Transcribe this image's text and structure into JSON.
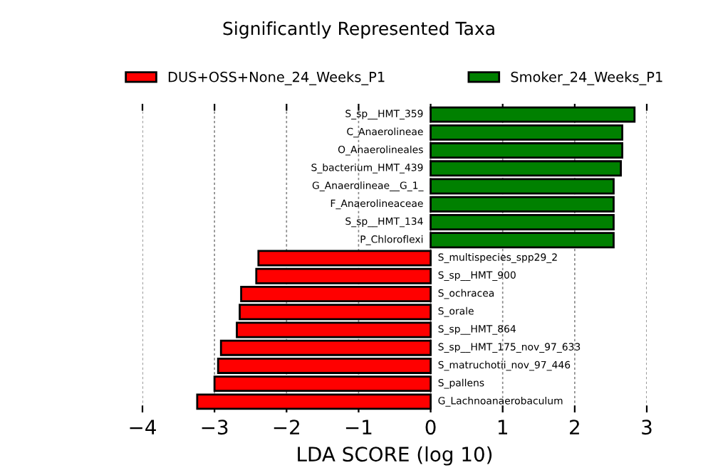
{
  "chart_data": {
    "type": "bar",
    "orientation": "horizontal",
    "title": "Significantly Represented Taxa",
    "xlabel": "LDA SCORE (log 10)",
    "categories": [
      "S_sp__HMT_359",
      "C_Anaerolineae",
      "O_Anaerolineales",
      "S_bacterium_HMT_439",
      "G_Anaerolineae__G_1_",
      "F_Anaerolineaceae",
      "S_sp__HMT_134",
      "P_Chloroflexi",
      "S_multispecies_spp29_2",
      "S_sp__HMT_900",
      "S_ochracea",
      "S_orale",
      "S_sp__HMT_864",
      "S_sp__HMT_175_nov_97_633",
      "S_matruchotii_nov_97_446",
      "S_pallens",
      "G_Lachnoanaerobaculum"
    ],
    "series": [
      {
        "name": "DUS+OSS+None_24_Weeks_P1",
        "color": "#ff0000",
        "values": [
          null,
          null,
          null,
          null,
          null,
          null,
          null,
          null,
          -2.39,
          -2.42,
          -2.63,
          -2.65,
          -2.69,
          -2.91,
          -2.95,
          -3.0,
          -3.24
        ]
      },
      {
        "name": "Smoker_24_Weeks_P1",
        "color": "#008000",
        "values": [
          2.83,
          2.66,
          2.66,
          2.64,
          2.54,
          2.54,
          2.54,
          2.54,
          null,
          null,
          null,
          null,
          null,
          null,
          null,
          null,
          null
        ]
      }
    ],
    "xlim": [
      -4,
      3
    ],
    "xticks": [
      {
        "value": -4,
        "label": "−4"
      },
      {
        "value": -3,
        "label": "−3"
      },
      {
        "value": -2,
        "label": "−2"
      },
      {
        "value": -1,
        "label": "−1"
      },
      0,
      1,
      2,
      3
    ],
    "grid": "x",
    "legend": "top",
    "tick_labels": "x"
  }
}
